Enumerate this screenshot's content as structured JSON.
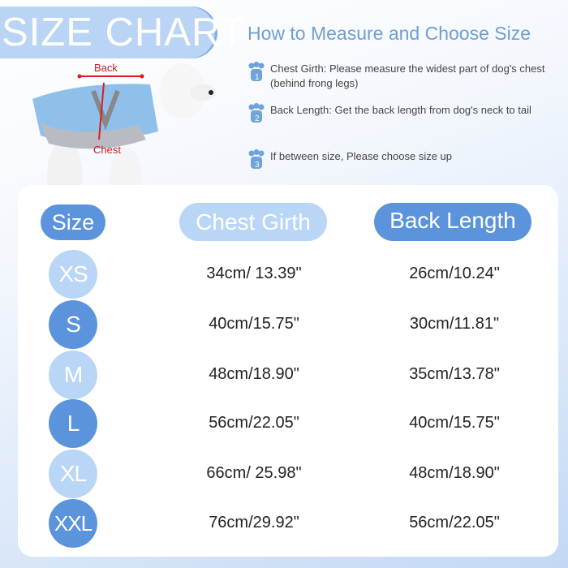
{
  "title": "SIZE CHART",
  "diagram_labels": {
    "back": "Back",
    "chest": "Chest"
  },
  "guide": {
    "heading": "How to Measure and Choose Size",
    "tips": [
      {
        "number": "1",
        "icon": "paw-icon",
        "text": "Chest Girth: Please measure the widest part of dog's chest (behind frong legs)"
      },
      {
        "number": "2",
        "icon": "paw-icon",
        "text": "Back Length: Get the back length from dog's neck to tail"
      },
      {
        "number": "3",
        "icon": "paw-icon",
        "text": "If between size, Please choose size up"
      }
    ]
  },
  "table": {
    "headers": [
      "Size",
      "Chest Girth",
      "Back Length"
    ],
    "rows": [
      {
        "size": "XS",
        "chest": "34cm/ 13.39\"",
        "back": "26cm/10.24\""
      },
      {
        "size": "S",
        "chest": "40cm/15.75\"",
        "back": "30cm/11.81\""
      },
      {
        "size": "M",
        "chest": "48cm/18.90\"",
        "back": "35cm/13.78\""
      },
      {
        "size": "L",
        "chest": "56cm/22.05\"",
        "back": "40cm/15.75\""
      },
      {
        "size": "XL",
        "chest": "66cm/ 25.98\"",
        "back": "48cm/18.90\""
      },
      {
        "size": "XXL",
        "chest": "76cm/29.92\"",
        "back": "56cm/22.05\""
      }
    ]
  },
  "colors": {
    "dark_blue": "#5b94dc",
    "light_blue": "#b9d6f7",
    "heading": "#6f9fd2",
    "measure_line": "#d81e1e"
  }
}
